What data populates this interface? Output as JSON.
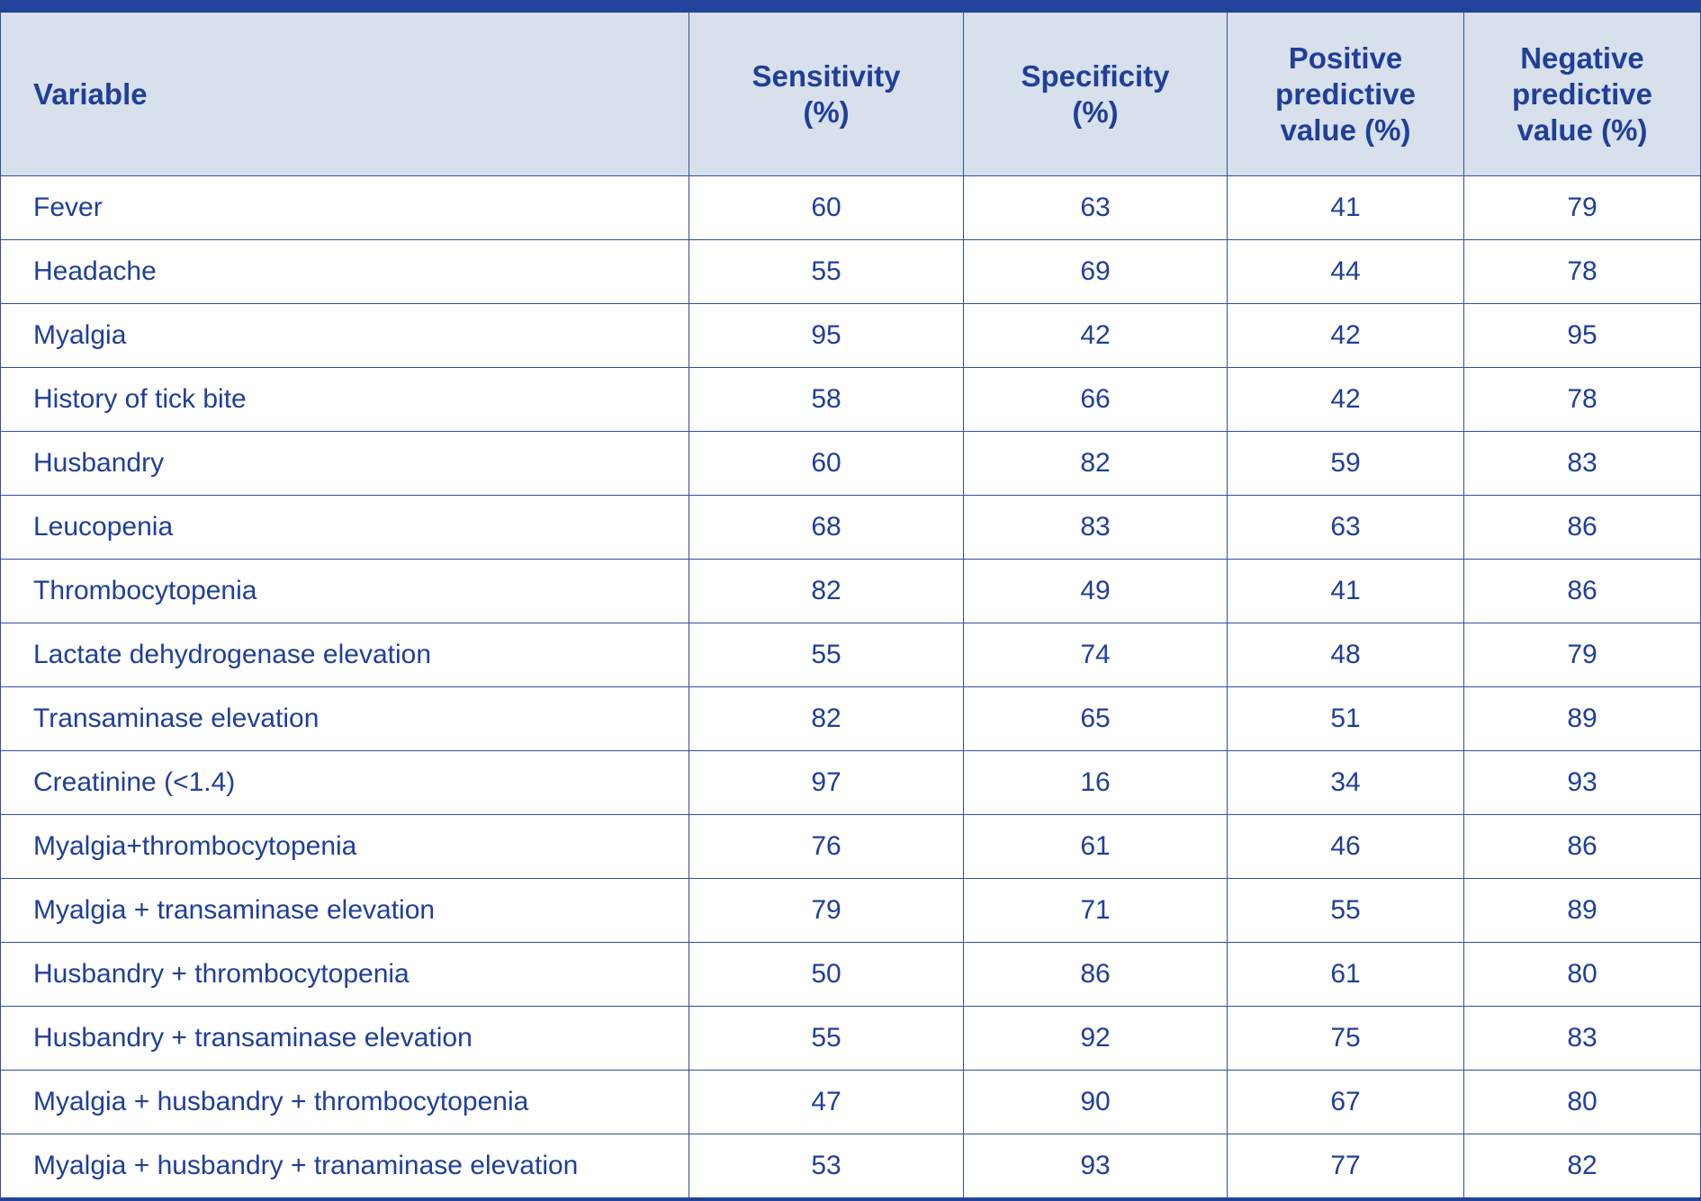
{
  "table": {
    "headers": [
      "Variable",
      "Sensitivity (%)",
      "Specificity (%)",
      "Positive predictive value (%)",
      "Negative predictive value (%)"
    ],
    "rows": [
      [
        "Fever",
        "60",
        "63",
        "41",
        "79"
      ],
      [
        "Headache",
        "55",
        "69",
        "44",
        "78"
      ],
      [
        "Myalgia",
        "95",
        "42",
        "42",
        "95"
      ],
      [
        "History of tick bite",
        "58",
        "66",
        "42",
        "78"
      ],
      [
        "Husbandry",
        "60",
        "82",
        "59",
        "83"
      ],
      [
        "Leucopenia",
        "68",
        "83",
        "63",
        "86"
      ],
      [
        "Thrombocytopenia",
        "82",
        "49",
        "41",
        "86"
      ],
      [
        "Lactate dehydrogenase elevation",
        "55",
        "74",
        "48",
        "79"
      ],
      [
        "Transaminase elevation",
        "82",
        "65",
        "51",
        "89"
      ],
      [
        "Creatinine (<1.4)",
        "97",
        "16",
        "34",
        "93"
      ],
      [
        "Myalgia+thrombocytopenia",
        "76",
        "61",
        "46",
        "86"
      ],
      [
        "Myalgia + transaminase elevation",
        "79",
        "71",
        "55",
        "89"
      ],
      [
        "Husbandry + thrombocytopenia",
        "50",
        "86",
        "61",
        "80"
      ],
      [
        "Husbandry + transaminase elevation",
        "55",
        "92",
        "75",
        "83"
      ],
      [
        "Myalgia + husbandry + thrombocytopenia",
        "47",
        "90",
        "67",
        "80"
      ],
      [
        "Myalgia + husbandry + tranaminase elevation",
        "53",
        "93",
        "77",
        "82"
      ]
    ]
  },
  "colors": {
    "text": "#1f3f99",
    "header_bg": "#d7e0eb",
    "rule": "#21449a",
    "grid": "#2e4fa3"
  }
}
